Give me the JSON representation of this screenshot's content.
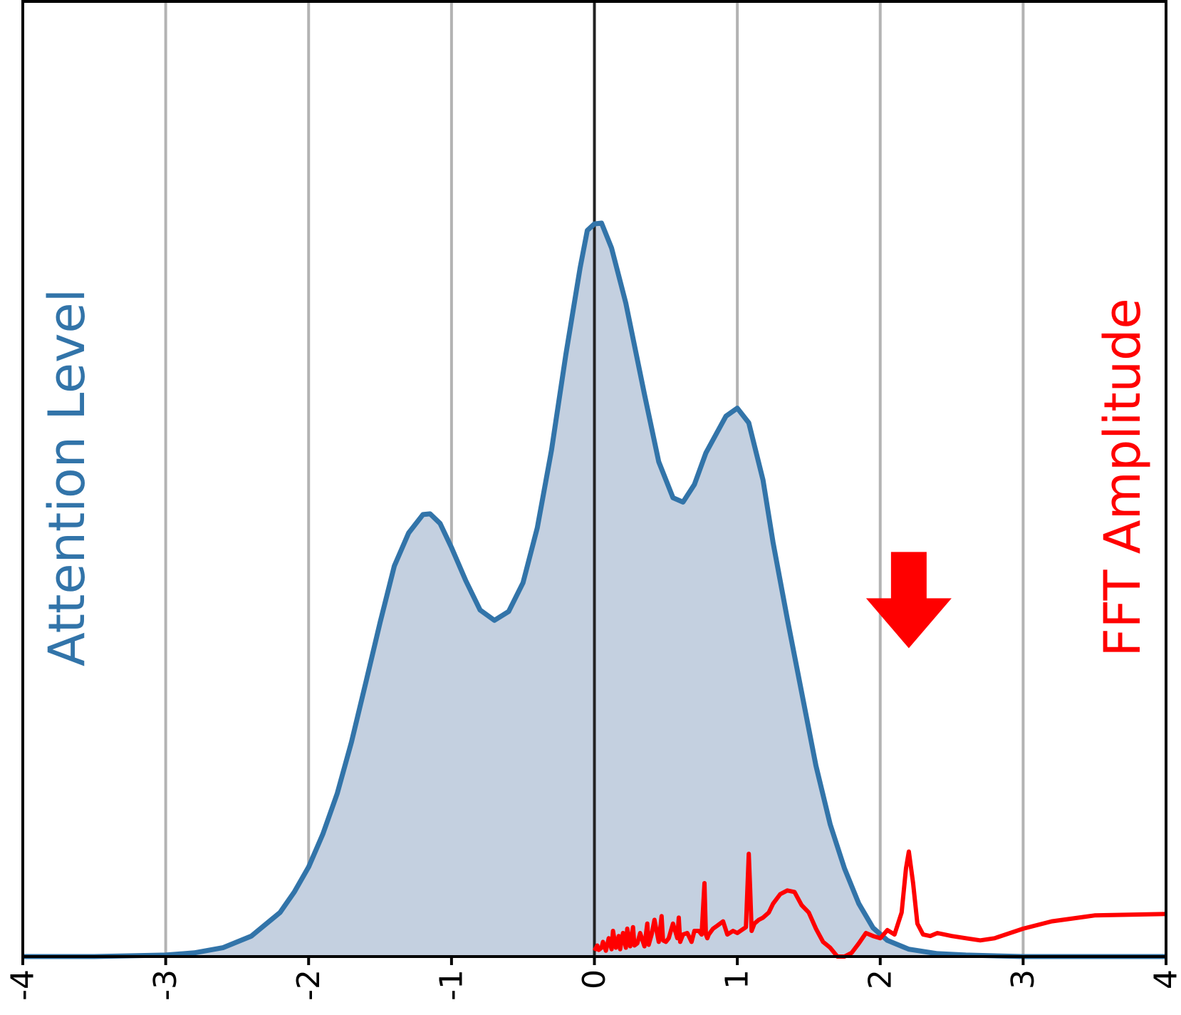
{
  "chart_data": {
    "type": "area",
    "xlabel": "",
    "ylabel": "Attention Level",
    "y2label": "FFT Amplitude",
    "xlim": [
      -4,
      4
    ],
    "xticks": [
      -4,
      -3,
      -2,
      -1,
      0,
      1,
      2,
      3,
      4
    ],
    "ylim_primary": [
      0,
      1.0
    ],
    "ylim_secondary": [
      0,
      1.0
    ],
    "grid": "vertical",
    "colors": {
      "attention_line": "#3274a9",
      "attention_fill": "#c4d0e0",
      "fft_line": "#ff0000",
      "arrow": "#ff0000",
      "grid": "#b3b3b3",
      "zero_line": "#222222"
    },
    "annotations": [
      {
        "type": "arrow",
        "direction": "down",
        "x": 2.2,
        "y2": 0.42
      }
    ],
    "series": [
      {
        "axis": "primary",
        "x": [
          -4.0,
          -3.5,
          -3.0,
          -2.8,
          -2.6,
          -2.4,
          -2.2,
          -2.1,
          -2.0,
          -1.9,
          -1.8,
          -1.7,
          -1.6,
          -1.5,
          -1.4,
          -1.3,
          -1.2,
          -1.15,
          -1.08,
          -1.0,
          -0.9,
          -0.8,
          -0.7,
          -0.6,
          -0.5,
          -0.4,
          -0.3,
          -0.2,
          -0.1,
          -0.05,
          0.0,
          0.05,
          0.12,
          0.22,
          0.35,
          0.45,
          0.55,
          0.62,
          0.7,
          0.78,
          0.92,
          1.0,
          1.08,
          1.18,
          1.25,
          1.35,
          1.45,
          1.55,
          1.65,
          1.75,
          1.85,
          1.95,
          2.05,
          2.2,
          2.4,
          2.6,
          3.0,
          3.5,
          4.0
        ],
        "y": [
          0.0,
          0.0,
          0.002,
          0.005,
          0.012,
          0.028,
          0.06,
          0.088,
          0.122,
          0.167,
          0.222,
          0.292,
          0.373,
          0.455,
          0.532,
          0.577,
          0.602,
          0.603,
          0.59,
          0.557,
          0.512,
          0.472,
          0.458,
          0.47,
          0.509,
          0.584,
          0.69,
          0.82,
          0.938,
          0.989,
          0.998,
          0.999,
          0.965,
          0.89,
          0.766,
          0.674,
          0.625,
          0.619,
          0.643,
          0.686,
          0.736,
          0.747,
          0.727,
          0.649,
          0.564,
          0.46,
          0.36,
          0.26,
          0.18,
          0.12,
          0.072,
          0.039,
          0.022,
          0.01,
          0.004,
          0.002,
          0.0,
          0.0,
          0.0
        ]
      },
      {
        "axis": "secondary",
        "x": [
          0.0,
          0.02,
          0.03,
          0.05,
          0.06,
          0.08,
          0.1,
          0.12,
          0.13,
          0.15,
          0.17,
          0.18,
          0.2,
          0.22,
          0.23,
          0.25,
          0.27,
          0.28,
          0.3,
          0.32,
          0.35,
          0.37,
          0.38,
          0.4,
          0.42,
          0.45,
          0.47,
          0.48,
          0.5,
          0.52,
          0.55,
          0.58,
          0.59,
          0.6,
          0.62,
          0.65,
          0.68,
          0.7,
          0.73,
          0.75,
          0.77,
          0.78,
          0.79,
          0.8,
          0.83,
          0.86,
          0.9,
          0.93,
          0.97,
          1.0,
          1.03,
          1.06,
          1.07,
          1.08,
          1.09,
          1.1,
          1.12,
          1.15,
          1.18,
          1.22,
          1.25,
          1.3,
          1.35,
          1.4,
          1.45,
          1.5,
          1.55,
          1.6,
          1.65,
          1.7,
          1.75,
          1.8,
          1.85,
          1.9,
          1.95,
          2.0,
          2.05,
          2.1,
          2.15,
          2.18,
          2.2,
          2.23,
          2.26,
          2.3,
          2.35,
          2.4,
          2.5,
          2.6,
          2.7,
          2.8,
          3.0,
          3.2,
          3.5,
          4.0
        ],
        "y": [
          0.008,
          0.015,
          0.009,
          0.012,
          0.02,
          0.008,
          0.025,
          0.01,
          0.035,
          0.012,
          0.028,
          0.01,
          0.032,
          0.012,
          0.038,
          0.014,
          0.04,
          0.015,
          0.018,
          0.032,
          0.014,
          0.045,
          0.016,
          0.03,
          0.05,
          0.02,
          0.055,
          0.022,
          0.02,
          0.025,
          0.045,
          0.025,
          0.053,
          0.02,
          0.03,
          0.032,
          0.02,
          0.035,
          0.035,
          0.03,
          0.1,
          0.03,
          0.025,
          0.03,
          0.038,
          0.042,
          0.048,
          0.03,
          0.035,
          0.032,
          0.036,
          0.04,
          0.09,
          0.14,
          0.09,
          0.035,
          0.045,
          0.05,
          0.053,
          0.06,
          0.072,
          0.085,
          0.09,
          0.088,
          0.07,
          0.06,
          0.038,
          0.02,
          0.012,
          0.0,
          0.0,
          0.005,
          0.018,
          0.032,
          0.028,
          0.025,
          0.036,
          0.03,
          0.06,
          0.12,
          0.143,
          0.1,
          0.045,
          0.03,
          0.028,
          0.032,
          0.028,
          0.025,
          0.022,
          0.025,
          0.038,
          0.048,
          0.056,
          0.058
        ]
      }
    ]
  }
}
